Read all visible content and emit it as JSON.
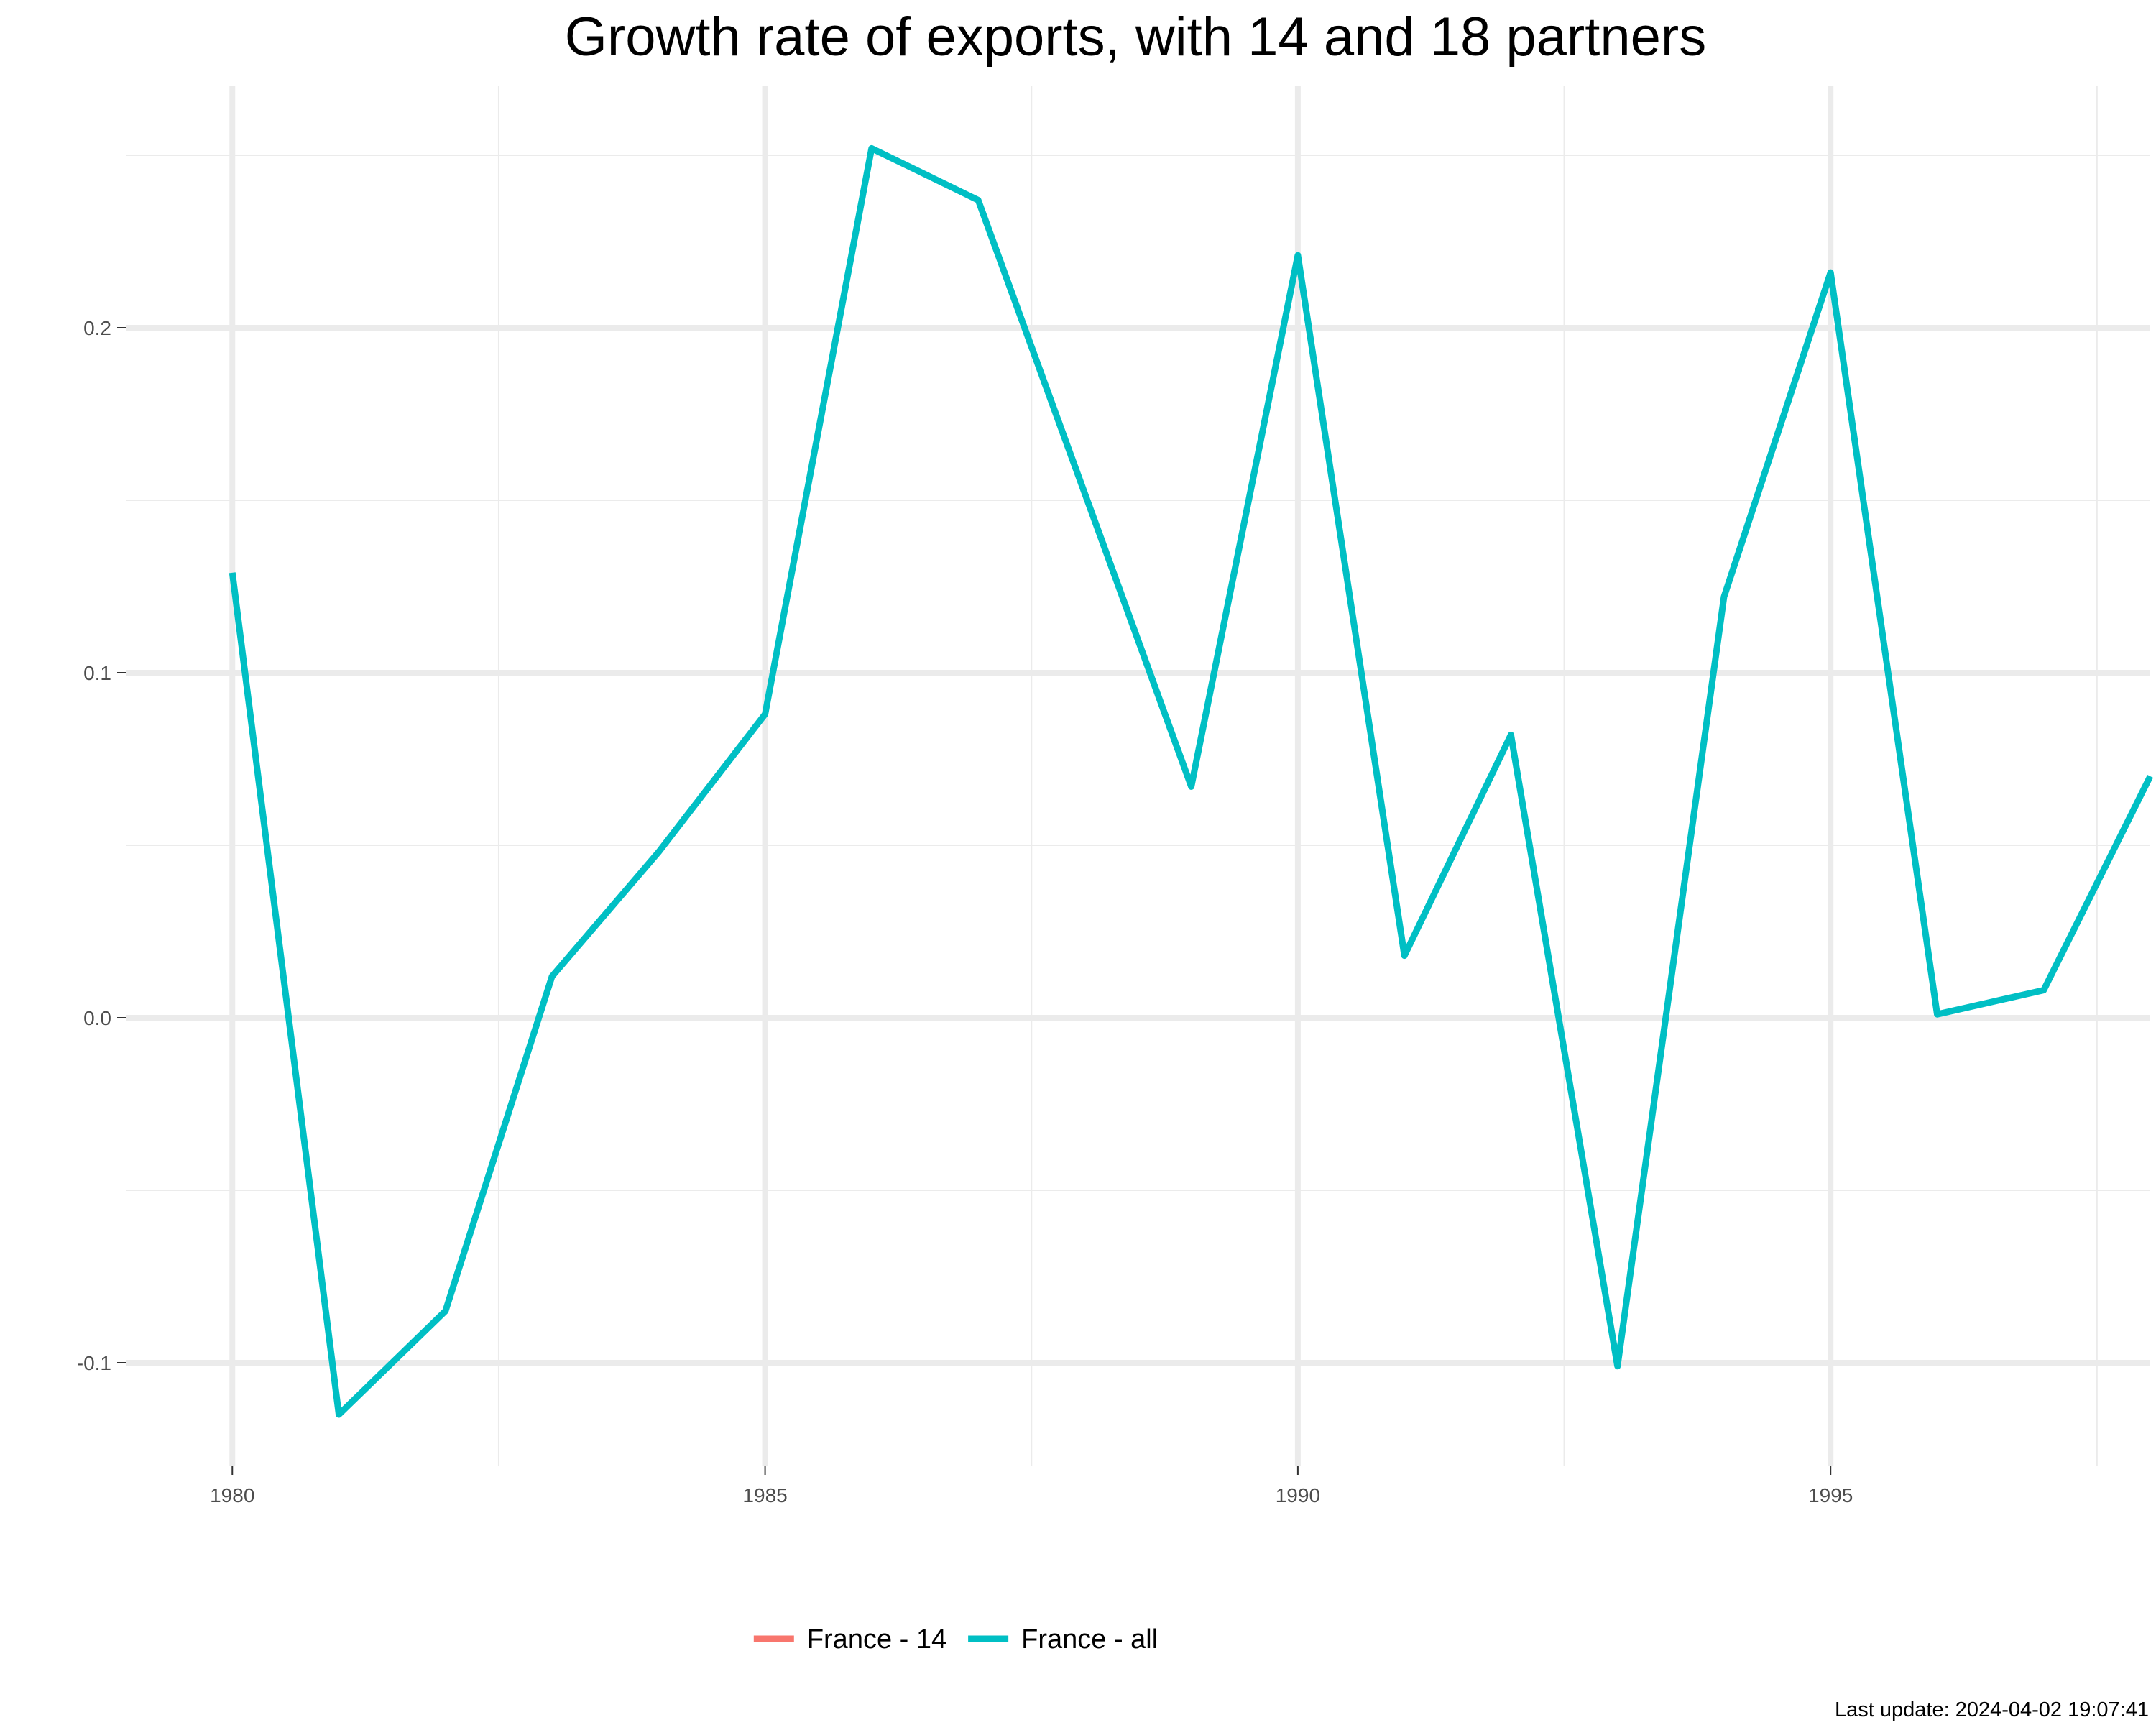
{
  "chart_data": {
    "type": "line",
    "title": "Growth rate of exports, with 14 and 18 partners",
    "xlabel": "",
    "ylabel": "",
    "xlim": [
      1979,
      1998
    ],
    "ylim": [
      -0.13,
      0.27
    ],
    "x_ticks": [
      {
        "value": 1980,
        "label": "1980"
      },
      {
        "value": 1985,
        "label": "1985"
      },
      {
        "value": 1990,
        "label": "1990"
      },
      {
        "value": 1995,
        "label": "1995"
      }
    ],
    "y_ticks": [
      {
        "value": -0.1,
        "label": "-0.1"
      },
      {
        "value": 0.0,
        "label": "0.0"
      },
      {
        "value": 0.1,
        "label": "0.1"
      },
      {
        "value": 0.2,
        "label": "0.2"
      }
    ],
    "grid": true,
    "legend_position": "bottom",
    "series": [
      {
        "name": "France - 14",
        "color": "#F8766D",
        "x": [],
        "values": []
      },
      {
        "name": "France - all",
        "color": "#00BFC4",
        "x": [
          1980,
          1981,
          1982,
          1983,
          1984,
          1985,
          1986,
          1987,
          1988,
          1989,
          1990,
          1991,
          1992,
          1993,
          1994,
          1995,
          1996,
          1997,
          1998
        ],
        "values": [
          0.129,
          -0.115,
          -0.085,
          0.012,
          0.048,
          0.088,
          0.252,
          0.237,
          0.152,
          0.067,
          0.221,
          0.018,
          0.082,
          -0.101,
          0.122,
          0.216,
          0.001,
          0.008,
          0.07
        ]
      }
    ],
    "caption": "Last update: 2024-04-02 19:07:41"
  }
}
